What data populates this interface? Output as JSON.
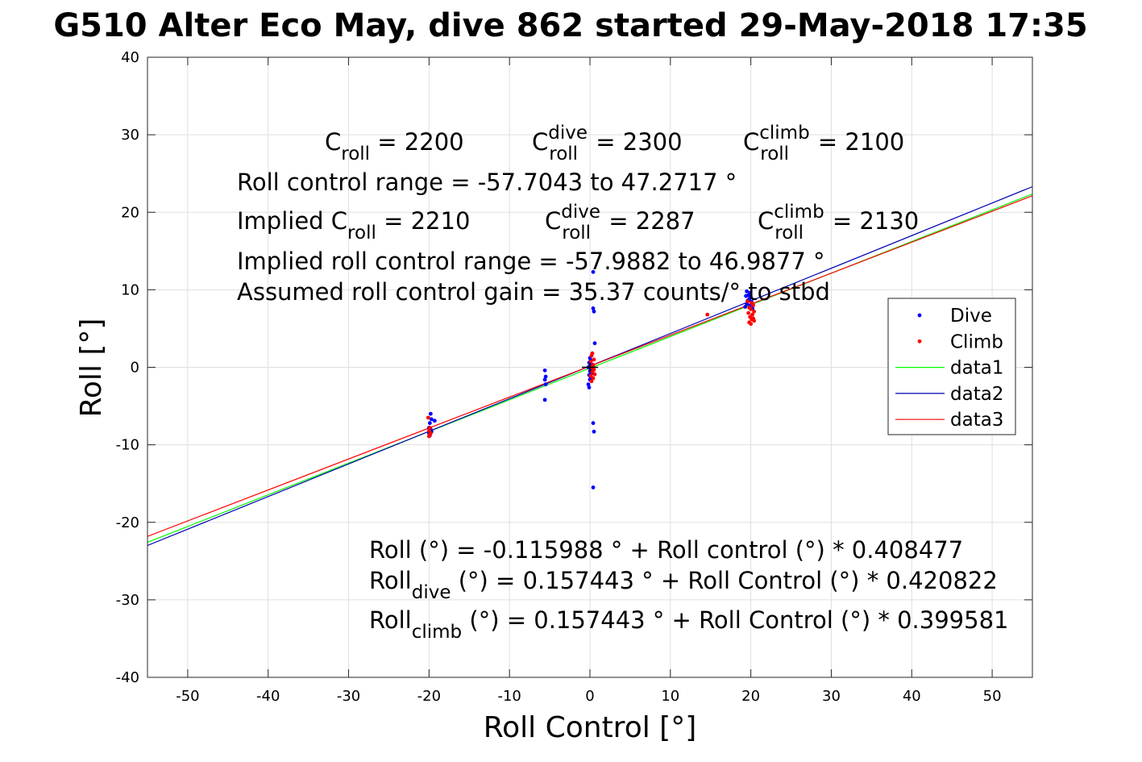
{
  "chart_data": {
    "type": "scatter",
    "title": "G510 Alter Eco May, dive 862 started 29-May-2018 17:35",
    "xlabel": "Roll Control [°]",
    "ylabel": "Roll [°]",
    "xlim": [
      -55,
      55
    ],
    "ylim": [
      -40,
      40
    ],
    "xticks": [
      -50,
      -40,
      -30,
      -20,
      -10,
      0,
      10,
      20,
      30,
      40,
      50
    ],
    "yticks": [
      -40,
      -30,
      -20,
      -10,
      0,
      10,
      20,
      30,
      40
    ],
    "grid": true,
    "legend_position": "right",
    "series": [
      {
        "name": "Dive",
        "kind": "points",
        "color": "#0000ff",
        "points": [
          [
            -19.8,
            -6.0
          ],
          [
            -19.7,
            -6.7
          ],
          [
            -19.9,
            -7.2
          ],
          [
            -20.0,
            -7.8
          ],
          [
            -19.8,
            -8.0
          ],
          [
            -19.7,
            -8.3
          ],
          [
            -20.0,
            -8.5
          ],
          [
            -19.9,
            -8.8
          ],
          [
            -19.3,
            -6.9
          ],
          [
            -5.6,
            -0.4
          ],
          [
            -5.5,
            -1.2
          ],
          [
            -5.6,
            -1.6
          ],
          [
            -5.5,
            -2.2
          ],
          [
            -5.6,
            -4.2
          ],
          [
            0.4,
            12.3
          ],
          [
            0.4,
            7.6
          ],
          [
            0.5,
            7.2
          ],
          [
            0.6,
            3.1
          ],
          [
            0.0,
            1.2
          ],
          [
            0.1,
            0.9
          ],
          [
            -0.1,
            0.6
          ],
          [
            0.2,
            0.4
          ],
          [
            0.0,
            0.2
          ],
          [
            -0.2,
            0.0
          ],
          [
            0.1,
            -0.3
          ],
          [
            0.0,
            -0.5
          ],
          [
            0.2,
            -0.8
          ],
          [
            -0.1,
            -1.0
          ],
          [
            0.1,
            -1.3
          ],
          [
            0.0,
            -1.6
          ],
          [
            -0.2,
            -2.2
          ],
          [
            -0.1,
            -2.6
          ],
          [
            0.4,
            -7.2
          ],
          [
            0.5,
            -8.3
          ],
          [
            0.4,
            -15.5
          ],
          [
            19.5,
            9.8
          ],
          [
            19.9,
            9.6
          ],
          [
            19.7,
            9.3
          ],
          [
            19.4,
            9.2
          ],
          [
            20.0,
            9.0
          ],
          [
            19.8,
            8.8
          ],
          [
            19.6,
            8.6
          ],
          [
            20.1,
            8.4
          ],
          [
            19.5,
            8.2
          ],
          [
            19.9,
            8.0
          ],
          [
            19.3,
            7.8
          ],
          [
            20.2,
            7.6
          ]
        ]
      },
      {
        "name": "Climb",
        "kind": "points",
        "color": "#ff0000",
        "points": [
          [
            -20.1,
            -6.5
          ],
          [
            -19.9,
            -7.8
          ],
          [
            -20.0,
            -8.2
          ],
          [
            -19.8,
            -8.5
          ],
          [
            -19.9,
            -8.7
          ],
          [
            -20.0,
            -8.9
          ],
          [
            0.3,
            1.8
          ],
          [
            0.2,
            1.5
          ],
          [
            0.5,
            1.0
          ],
          [
            0.1,
            0.7
          ],
          [
            0.4,
            0.3
          ],
          [
            0.2,
            0.0
          ],
          [
            0.5,
            -0.3
          ],
          [
            0.3,
            -0.6
          ],
          [
            0.6,
            -0.9
          ],
          [
            0.1,
            -1.1
          ],
          [
            0.4,
            -1.4
          ],
          [
            0.2,
            -1.8
          ],
          [
            14.6,
            6.8
          ],
          [
            19.6,
            8.5
          ],
          [
            20.1,
            8.3
          ],
          [
            20.3,
            8.0
          ],
          [
            19.8,
            7.7
          ],
          [
            20.0,
            7.5
          ],
          [
            20.4,
            7.2
          ],
          [
            19.7,
            7.0
          ],
          [
            20.2,
            6.8
          ],
          [
            19.9,
            6.5
          ],
          [
            20.1,
            6.2
          ],
          [
            20.4,
            6.0
          ],
          [
            19.8,
            5.8
          ],
          [
            20.0,
            5.6
          ],
          [
            20.3,
            6.3
          ]
        ]
      },
      {
        "name": "data1",
        "kind": "line",
        "color": "#00ff00",
        "points": [
          [
            -55,
            -22.58
          ],
          [
            55,
            22.35
          ]
        ]
      },
      {
        "name": "data2",
        "kind": "line",
        "color": "#0000b4",
        "points": [
          [
            -55,
            -22.99
          ],
          [
            55,
            23.3
          ]
        ]
      },
      {
        "name": "data3",
        "kind": "line",
        "color": "#ff0000",
        "points": [
          [
            -55,
            -21.82
          ],
          [
            55,
            22.13
          ]
        ]
      },
      {
        "name": "",
        "kind": "marker",
        "color": "#000000",
        "points": [
          [
            0,
            0
          ]
        ]
      }
    ],
    "annotations": {
      "top": [
        [
          {
            "base": "C",
            "sub": "roll",
            "rest": " = 2200"
          },
          {
            "base": "C",
            "sup": "dive",
            "sub": "roll",
            "rest": " = 2300"
          },
          {
            "base": "C",
            "sup": "climb",
            "sub": "roll",
            "rest": " = 2100"
          }
        ],
        [
          {
            "base": "Roll control range = -57.7043 to 47.2717 °"
          }
        ],
        [
          {
            "base": "Implied C",
            "sub": "roll",
            "rest": " = 2210"
          },
          {
            "base": "C",
            "sup": "dive",
            "sub": "roll",
            "rest": " = 2287"
          },
          {
            "base": "C",
            "sup": "climb",
            "sub": "roll",
            "rest": " = 2130"
          }
        ],
        [
          {
            "base": "Implied roll control range = -57.9882 to 46.9877 °"
          }
        ],
        [
          {
            "base": "Assumed roll control gain = 35.37 counts/° to stbd"
          }
        ]
      ],
      "bottom": [
        {
          "base": "Roll (°) = -0.115988 ° + Roll control (°) * 0.408477"
        },
        {
          "base": "Roll",
          "sub": "dive",
          "rest": " (°) = 0.157443 ° + Roll Control (°) * 0.420822"
        },
        {
          "base": "Roll",
          "sub": "climb",
          "rest": " (°) = 0.157443 ° + Roll Control (°) * 0.399581"
        }
      ]
    }
  }
}
